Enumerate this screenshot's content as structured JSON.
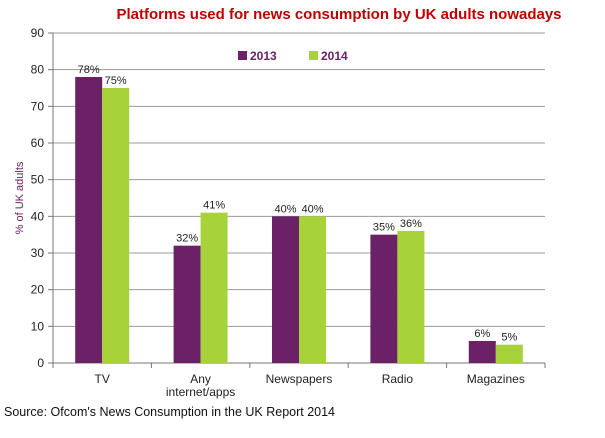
{
  "chart_data": {
    "type": "bar",
    "title": "Platforms used for news consumption by UK adults nowadays",
    "ylabel": "% of UK adults",
    "xlabel": "",
    "ylim": [
      0,
      90
    ],
    "yticks": [
      0,
      10,
      20,
      30,
      40,
      50,
      60,
      70,
      80,
      90
    ],
    "categories": [
      [
        "TV"
      ],
      [
        "Any",
        "internet/apps"
      ],
      [
        "Newspapers"
      ],
      [
        "Radio"
      ],
      [
        "Magazines"
      ]
    ],
    "series": [
      {
        "name": "2013",
        "color": "#6a2166",
        "values": [
          78,
          32,
          40,
          35,
          6
        ],
        "labels": [
          "78%",
          "32%",
          "40%",
          "35%",
          "6%"
        ]
      },
      {
        "name": "2014",
        "color": "#a8d23a",
        "values": [
          75,
          41,
          40,
          36,
          5
        ],
        "labels": [
          "75%",
          "41%",
          "40%",
          "36%",
          "5%"
        ]
      }
    ],
    "grid": true,
    "legend_position": "top-center"
  },
  "source": "Source: Ofcom's News Consumption in the UK Report 2014"
}
